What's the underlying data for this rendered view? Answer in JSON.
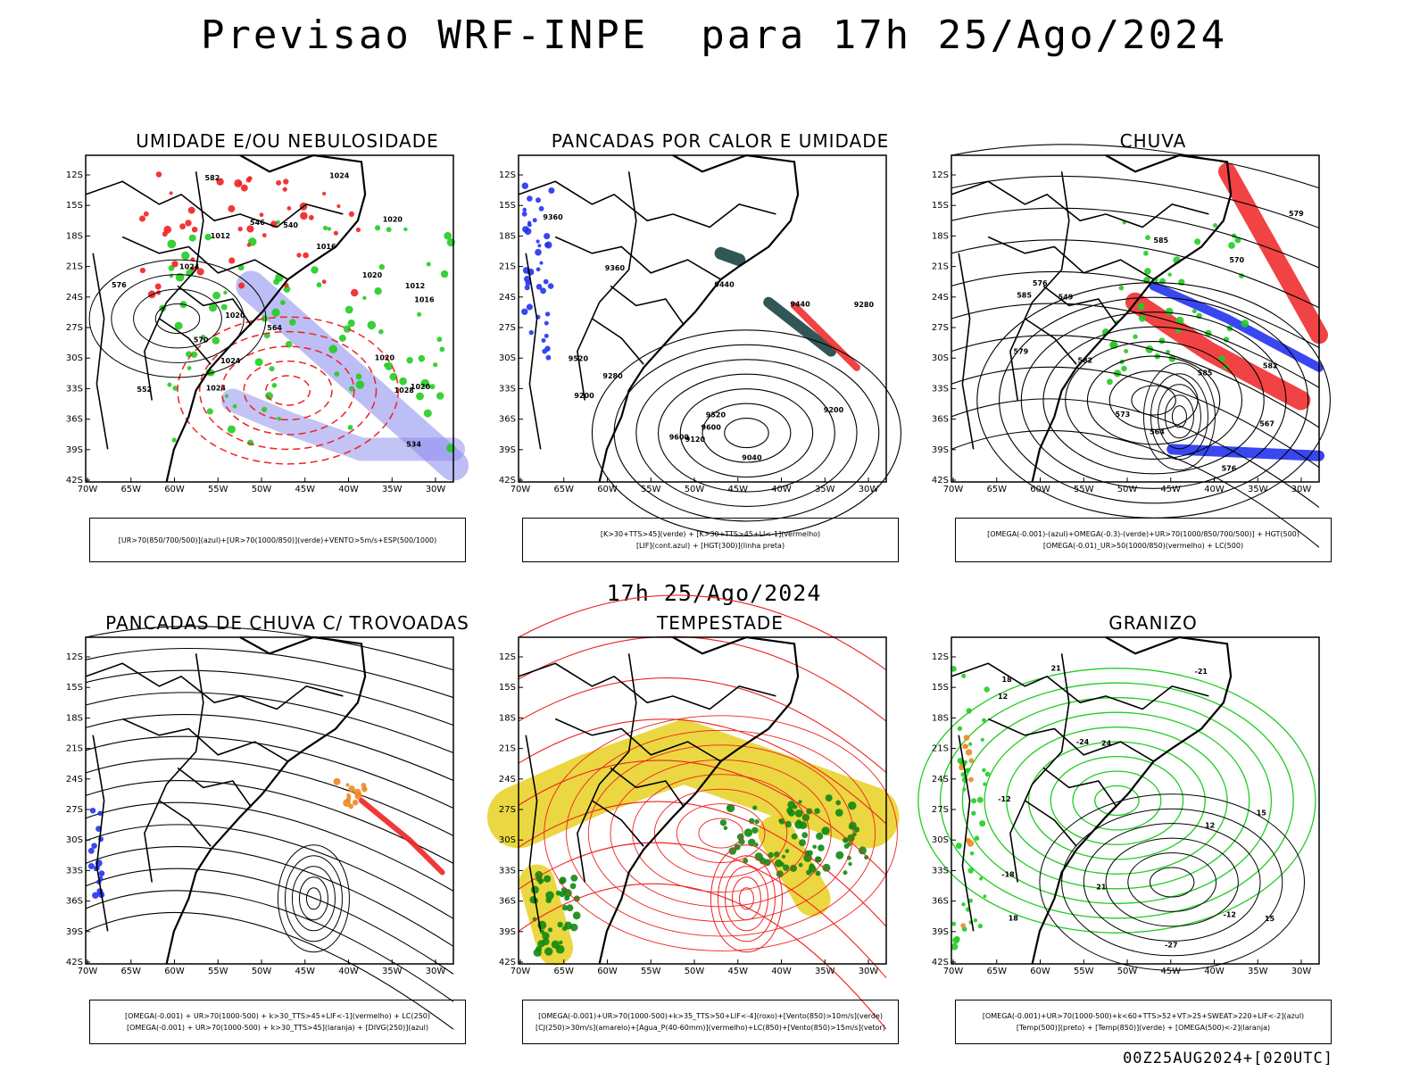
{
  "header": {
    "title": "Previsao WRF-INPE  para 17h 25/Ago/2024"
  },
  "mid_title": "17h 25/Ago/2024",
  "footer": "00Z25AUG2024+[020UTC]",
  "axes": {
    "lat_labels": [
      "12S",
      "15S",
      "18S",
      "21S",
      "24S",
      "27S",
      "30S",
      "33S",
      "36S",
      "39S",
      "42S"
    ],
    "lon_labels": [
      "70W",
      "65W",
      "60W",
      "55W",
      "50W",
      "45W",
      "40W",
      "35W",
      "30W"
    ]
  },
  "colors": {
    "blue": "#2233ee",
    "green": "#22cc22",
    "red": "#ee2222",
    "orange": "#ee8822",
    "yellow": "#e8d020",
    "purple": "#8888ee",
    "teal": "#1a4444",
    "dark_green": "#118811"
  },
  "panels": [
    {
      "title": "UMIDADE E/OU NEBULOSIDADE",
      "legend": [
        "[UR>70(850/700/500)](azul)+[UR>70(1000/850)](verde)+VENTO>5m/s+ESP(500/1000)"
      ],
      "contour_labels": [
        "1012",
        "1012",
        "1016",
        "1016",
        "1020",
        "1020",
        "1024",
        "1024",
        "1028",
        "1020",
        "1024",
        "1020",
        "1020",
        "1024",
        "552",
        "564",
        "570",
        "576",
        "582",
        "546",
        "534",
        "540"
      ]
    },
    {
      "title": "PANCADAS POR CALOR E UMIDADE",
      "legend": [
        "[K>30+TTS>45](verde) + [K>30+TTS>45+LI<-1](vermelho)",
        "[LIF](cont.azul) + [HGT(300)](linha preta)"
      ],
      "contour_labels": [
        "9600",
        "9520",
        "9440",
        "9360",
        "9280",
        "9200",
        "9600",
        "9520",
        "9440",
        "9360",
        "9280",
        "9200",
        "9120",
        "9040"
      ]
    },
    {
      "title": "CHUVA",
      "legend": [
        "[OMEGA(-0.001)-(azul)+OMEGA(-0.3)-(verde)+UR>70(1000/850/700/500)] + HGT(500)",
        "[OMEGA(-0.01)_UR>50(1000/850)(vermelho) + LC(500)"
      ],
      "contour_labels": [
        "585",
        "585",
        "582",
        "579",
        "576",
        "573",
        "570",
        "567",
        "564",
        "582",
        "585",
        "579",
        "576",
        "549"
      ]
    },
    {
      "title": "PANCADAS DE CHUVA C/ TROVOADAS",
      "legend": [
        "[OMEGA(-0.001) + UR>70(1000-500) + k>30_TTS>45+LIF<-1](vermelho) + LC(250)",
        "[OMEGA(-0.001) + UR>70(1000-500) + k>30_TTS>45](laranja) + [DIVG(250)](azul)"
      ],
      "contour_labels": []
    },
    {
      "title": "TEMPESTADE",
      "legend": [
        "[OMEGA(-0.001)+UR>70(1000-500)+k>35_TTS>50+LIF<-4](roxo)+[Vento(850)>10m/s](verde)",
        "[CJ(250)>30m/s](amarelo)+[Agua_P(40-60mm)](vermelho)+LC(850)+[Vento(850)>15m/s](vetor)"
      ],
      "contour_labels": []
    },
    {
      "title": "GRANIZO",
      "legend": [
        "[OMEGA(-0.001)+UR>70(1000-500)+k<60+TTS>52+VT>25+SWEAT>220+LIF<-2](azul)",
        "[Temp(500)](preto) + [Temp(850)](verde) + [OMEGA(500)<-2](laranja)"
      ],
      "contour_labels": [
        "12",
        "15",
        "18",
        "21",
        "24",
        "-12",
        "-18",
        "-21",
        "-24",
        "-27",
        "12",
        "-12",
        "18",
        "15",
        "21"
      ]
    }
  ]
}
